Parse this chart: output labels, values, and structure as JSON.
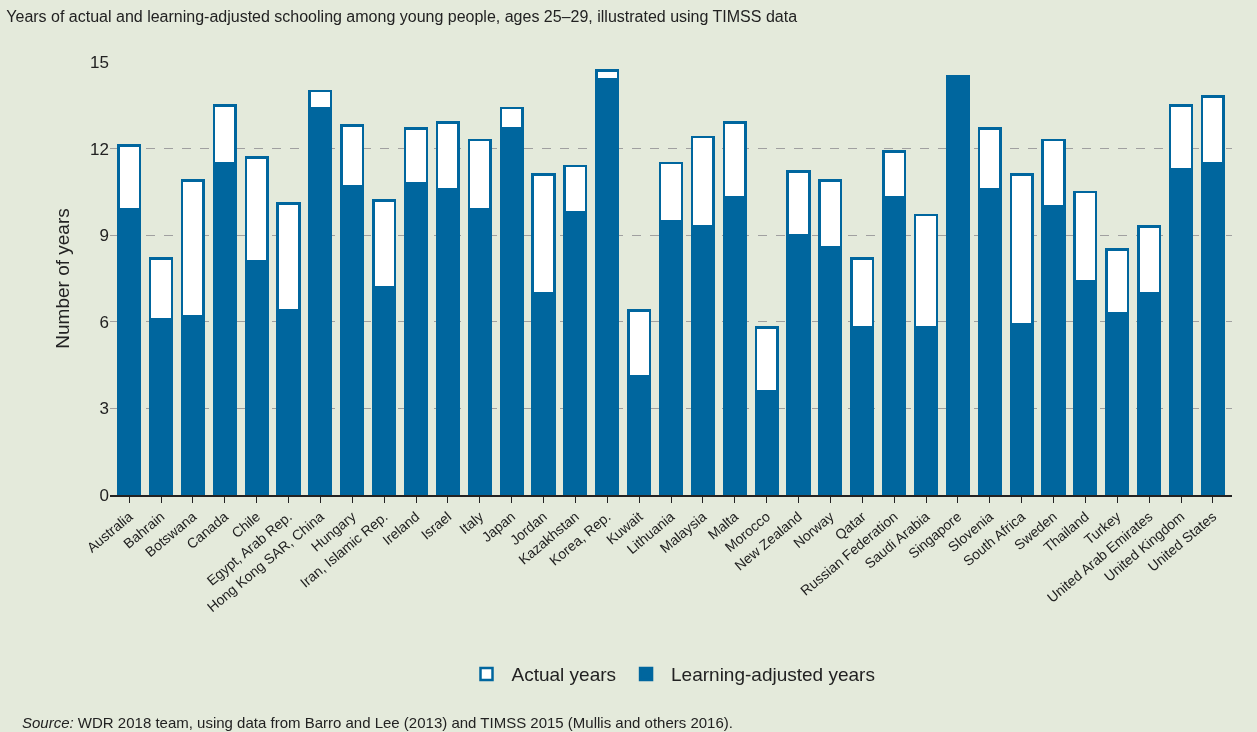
{
  "chart_data": {
    "type": "bar",
    "stacked": true,
    "title": "Years of actual and learning-adjusted schooling among young people, ages 25–29, illustrated using TIMSS data",
    "ylabel": "Number of years",
    "categories": [
      "Australia",
      "Bahrain",
      "Botswana",
      "Canada",
      "Chile",
      "Egypt, Arab Rep.",
      "Hong Kong SAR, China",
      "Hungary",
      "Iran, Islamic Rep.",
      "Ireland",
      "Israel",
      "Italy",
      "Japan",
      "Jordan",
      "Kazakhstan",
      "Korea, Rep.",
      "Kuwait",
      "Lithuania",
      "Malaysia",
      "Malta",
      "Morocco",
      "New Zealand",
      "Norway",
      "Qatar",
      "Russian Federation",
      "Saudi Arabia",
      "Singapore",
      "Slovenia",
      "South Africa",
      "Sweden",
      "Thailand",
      "Turkey",
      "United Arab Emirates",
      "United Kingdom",
      "United States"
    ],
    "series": [
      {
        "name": "Learning-adjusted years",
        "color": "#00669e",
        "values": [
          9.9,
          6.1,
          6.2,
          11.5,
          8.1,
          6.4,
          13.4,
          10.7,
          7.2,
          10.8,
          10.6,
          9.9,
          12.7,
          7.0,
          9.8,
          14.4,
          4.1,
          9.5,
          9.3,
          10.3,
          3.6,
          9.0,
          8.6,
          5.8,
          10.3,
          5.8,
          14.5,
          10.6,
          5.9,
          10.0,
          7.4,
          6.3,
          7.0,
          11.3,
          11.5
        ]
      },
      {
        "name": "Actual years",
        "color": "#ffffff",
        "values": [
          2.2,
          2.1,
          4.7,
          2.0,
          3.6,
          3.7,
          0.6,
          2.1,
          3.0,
          1.9,
          2.3,
          2.4,
          0.7,
          4.1,
          1.6,
          0.3,
          2.3,
          2.0,
          3.1,
          2.6,
          2.2,
          2.2,
          2.3,
          2.4,
          1.6,
          3.9,
          0,
          2.1,
          5.2,
          2.3,
          3.1,
          2.2,
          2.3,
          2.2,
          2.3
        ]
      }
    ],
    "ylim": [
      0,
      15
    ],
    "yticks": [
      0,
      3,
      6,
      9,
      12,
      15
    ],
    "grid": "y",
    "legend": "bottom",
    "annotations": [
      "Source: WDR 2018 team, using data from Barro and Lee (2013) and TIMSS 2015 (Mullis and others 2016)."
    ]
  }
}
